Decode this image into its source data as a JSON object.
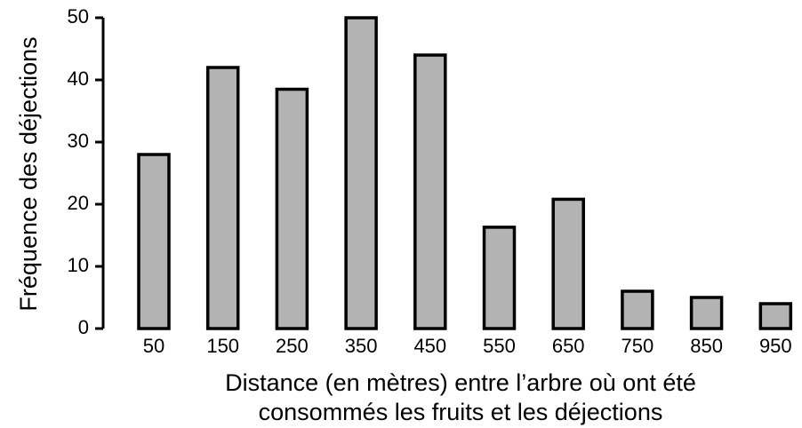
{
  "chart_data": {
    "type": "bar",
    "categories": [
      "50",
      "150",
      "250",
      "350",
      "450",
      "550",
      "650",
      "750",
      "850",
      "950"
    ],
    "values": [
      28,
      42,
      38.5,
      50,
      44,
      16.3,
      20.8,
      6,
      5,
      4
    ],
    "title": "",
    "xlabel_lines": [
      "Distance (en mètres) entre l’arbre où ont été",
      "consommés les fruits et les déjections"
    ],
    "ylabel": "Fréquence des déjections",
    "ylim": [
      0,
      50
    ],
    "yticks": [
      "0",
      "10",
      "20",
      "30",
      "40",
      "50"
    ],
    "grid": false,
    "legend": "none",
    "colors": {
      "bar_fill": "#b3b3b3",
      "bar_stroke": "#000000",
      "axis": "#000000",
      "text": "#000000"
    }
  }
}
